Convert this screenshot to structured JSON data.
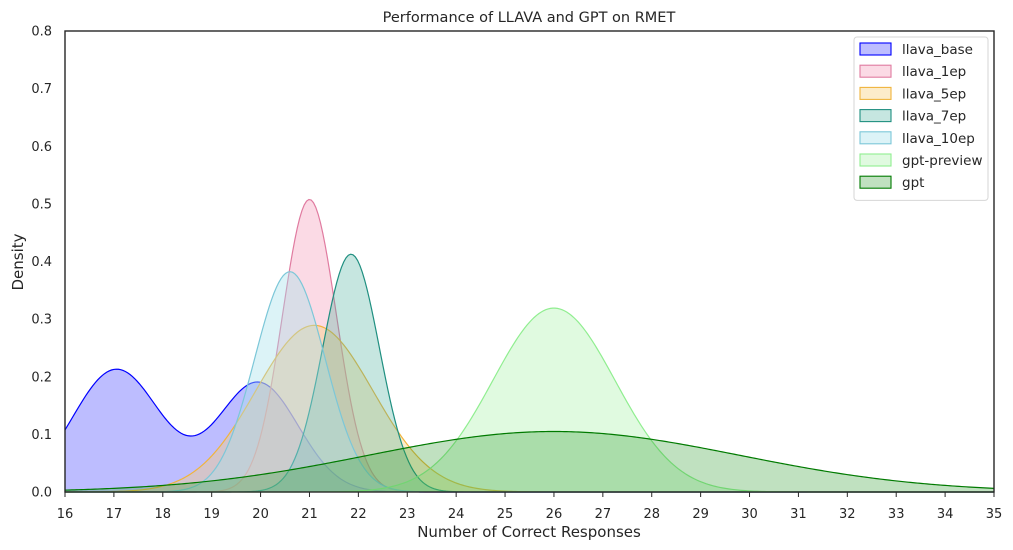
{
  "chart_data": {
    "type": "area",
    "subtype": "kde",
    "title": "Performance of LLAVA and GPT on RMET",
    "xlabel": "Number of Correct Responses",
    "ylabel": "Density",
    "xlim": [
      16,
      35
    ],
    "ylim": [
      0,
      0.8
    ],
    "xticks": [
      16,
      17,
      18,
      19,
      20,
      21,
      22,
      23,
      24,
      25,
      26,
      27,
      28,
      29,
      30,
      31,
      32,
      33,
      34,
      35
    ],
    "yticks": [
      0.0,
      0.1,
      0.2,
      0.3,
      0.4,
      0.5,
      0.6,
      0.7,
      0.8
    ],
    "grid": false,
    "legend_position": "top-right",
    "series": [
      {
        "name": "llava_base",
        "line_color": "#0000ff",
        "fill_color": "#0000ff",
        "fill_opacity": 0.26,
        "components": [
          {
            "mu": 17.05,
            "sigma": 0.9,
            "weight": 0.48
          },
          {
            "mu": 19.95,
            "sigma": 0.82,
            "weight": 0.39
          }
        ]
      },
      {
        "name": "llava_1ep",
        "line_color": "#e07ba0",
        "fill_color": "#f5a6c0",
        "fill_opacity": 0.42,
        "components": [
          {
            "mu": 21.0,
            "sigma": 0.55,
            "weight": 0.7
          }
        ]
      },
      {
        "name": "llava_5ep",
        "line_color": "#f0b43c",
        "fill_color": "#f7d07a",
        "fill_opacity": 0.4,
        "components": [
          {
            "mu": 21.1,
            "sigma": 1.2,
            "weight": 0.87
          }
        ]
      },
      {
        "name": "llava_7ep",
        "line_color": "#1f8f80",
        "fill_color": "#4fb0a0",
        "fill_opacity": 0.32,
        "components": [
          {
            "mu": 21.85,
            "sigma": 0.58,
            "weight": 0.6
          }
        ]
      },
      {
        "name": "llava_10ep",
        "line_color": "#7cc7d8",
        "fill_color": "#a8e0ea",
        "fill_opacity": 0.4,
        "components": [
          {
            "mu": 20.6,
            "sigma": 0.72,
            "weight": 0.69
          }
        ]
      },
      {
        "name": "gpt-preview",
        "line_color": "#90ee90",
        "fill_color": "#90ee90",
        "fill_opacity": 0.28,
        "components": [
          {
            "mu": 26.0,
            "sigma": 1.25,
            "weight": 1.0
          }
        ]
      },
      {
        "name": "gpt",
        "line_color": "#007a00",
        "fill_color": "#2e9a2e",
        "fill_opacity": 0.3,
        "components": [
          {
            "mu": 26.0,
            "sigma": 3.8,
            "weight": 1.0
          }
        ]
      }
    ]
  }
}
